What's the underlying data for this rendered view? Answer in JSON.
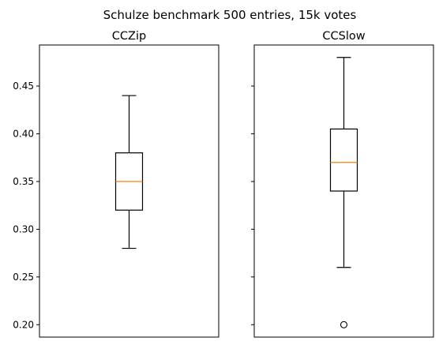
{
  "chart_data": {
    "type": "boxplot",
    "title": "Schulze benchmark 500 entries, 15k votes",
    "sharey": true,
    "ylim": [
      0.187,
      0.493
    ],
    "yticks": [
      0.2,
      0.25,
      0.3,
      0.35,
      0.4,
      0.45
    ],
    "ytick_labels": [
      "0.20",
      "0.25",
      "0.30",
      "0.35",
      "0.40",
      "0.45"
    ],
    "colors": {
      "box": "#000000",
      "median": "#ff7f0e"
    },
    "panels": [
      {
        "title": "CCZip",
        "whisker_low": 0.28,
        "q1": 0.32,
        "median": 0.35,
        "q3": 0.38,
        "whisker_high": 0.44,
        "outliers": []
      },
      {
        "title": "CCSlow",
        "whisker_low": 0.26,
        "q1": 0.34,
        "median": 0.37,
        "q3": 0.405,
        "whisker_high": 0.48,
        "outliers": [
          0.2
        ]
      }
    ]
  }
}
